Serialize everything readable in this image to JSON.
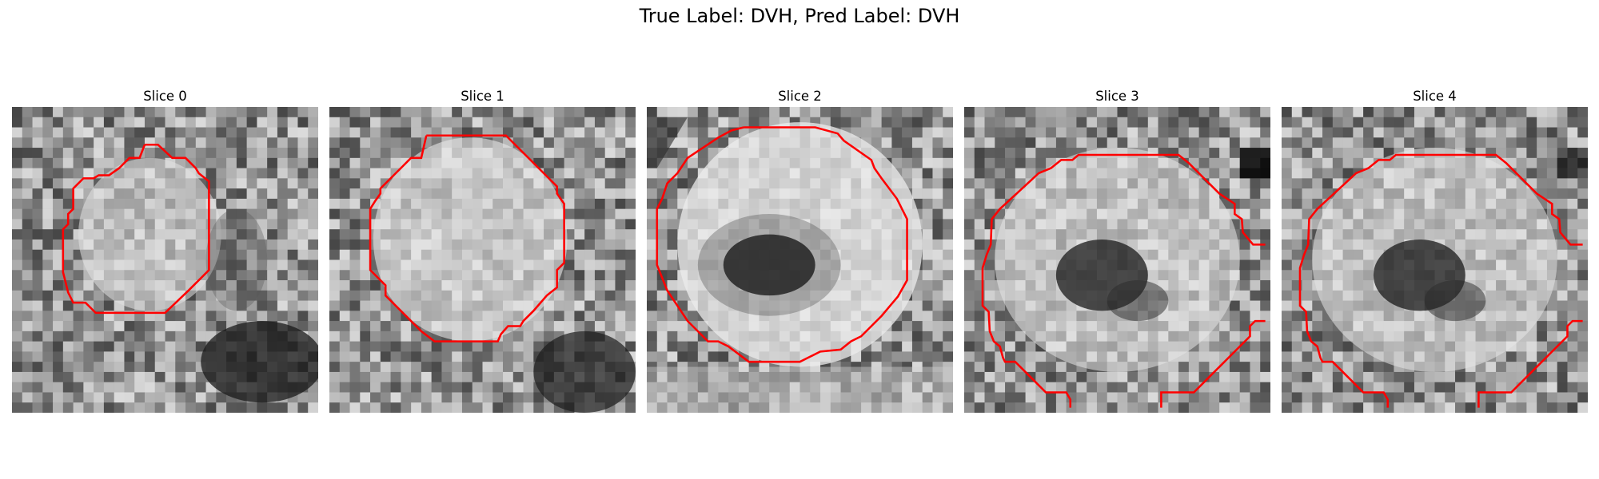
{
  "figure": {
    "title": "True Label: DVH, Pred Label: DVH"
  },
  "panels": [
    {
      "title": "Slice 0",
      "image": "grayscale-ct-slice",
      "contour_color": "#ff0000"
    },
    {
      "title": "Slice 1",
      "image": "grayscale-ct-slice",
      "contour_color": "#ff0000"
    },
    {
      "title": "Slice 2",
      "image": "grayscale-ct-slice",
      "contour_color": "#ff0000"
    },
    {
      "title": "Slice 3",
      "image": "grayscale-ct-slice",
      "contour_color": "#ff0000"
    },
    {
      "title": "Slice 4",
      "image": "grayscale-ct-slice",
      "contour_color": "#ff0000"
    }
  ]
}
